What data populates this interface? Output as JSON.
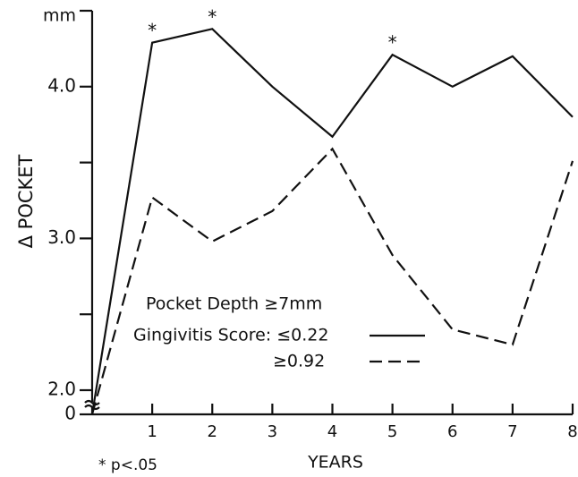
{
  "chart_data": {
    "type": "line",
    "y_label": "Δ POCKET",
    "y_unit": "mm",
    "x_label": "YEARS",
    "x": [
      0,
      1,
      2,
      3,
      4,
      5,
      6,
      7,
      8
    ],
    "series": [
      {
        "name": "Gingivitis Score: ≤0.22",
        "color": "#111111",
        "dashed": false,
        "values": [
          0,
          4.29,
          4.38,
          4.0,
          3.67,
          4.21,
          4.0,
          4.2,
          3.8
        ]
      },
      {
        "name": "≥0.92",
        "color": "#111111",
        "dashed": true,
        "values": [
          0,
          3.27,
          2.98,
          3.18,
          3.59,
          2.89,
          2.4,
          2.3,
          3.51
        ]
      }
    ],
    "legend_title": "Pocket Depth ≥7mm",
    "xlim": [
      0,
      8
    ],
    "xticks": [
      1,
      2,
      3,
      4,
      5,
      6,
      7,
      8
    ],
    "ylim": [
      0,
      4.5
    ],
    "axis_break": true,
    "yticks": [
      0,
      {
        "value": 2,
        "label": "2.0"
      },
      {
        "value": 3,
        "label": "3.0"
      },
      {
        "value": 4,
        "label": "4.0"
      }
    ],
    "yminor_ticks": [
      2.5,
      3.5,
      4.5
    ],
    "significance_marks": [
      {
        "x": 1,
        "y": 4.29,
        "label": "*"
      },
      {
        "x": 2,
        "y": 4.38,
        "label": "*"
      },
      {
        "x": 5,
        "y": 4.21,
        "label": "*"
      }
    ],
    "footnote": "* p<.05"
  }
}
